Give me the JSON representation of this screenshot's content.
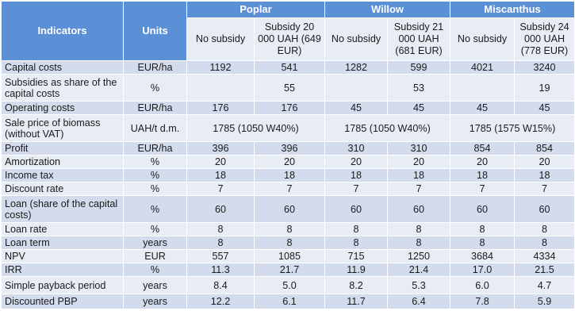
{
  "header": {
    "indicators_label": "Indicators",
    "units_label": "Units",
    "crops": [
      "Poplar",
      "Willow",
      "Miscanthus"
    ],
    "scenarios": [
      "No subsidy",
      "Subsidy 20 000 UAH (649 EUR)",
      "No subsidy",
      "Subsidy 21 000 UAH (681 EUR)",
      "No subsidy",
      "Subsidy 24 000 UAH (778 EUR)"
    ]
  },
  "rows": [
    {
      "indicator": "Capital costs",
      "unit": "EUR/ha",
      "values": [
        "1192",
        "541",
        "1282",
        "599",
        "4021",
        "3240"
      ]
    },
    {
      "indicator": "Subsidies as share of the capital costs",
      "unit": "%",
      "values": [
        "",
        "55",
        "",
        "53",
        "",
        "19"
      ]
    },
    {
      "indicator": "Operating costs",
      "unit": "EUR/ha",
      "values": [
        "176",
        "176",
        "45",
        "45",
        "45",
        "45"
      ]
    },
    {
      "indicator": "Sale price of biomass (without VAT)",
      "unit": "UAH/t d.m.",
      "merged": [
        "1785 (1050 W40%)",
        "1785 (1050 W40%)",
        "1785 (1575 W15%)"
      ]
    },
    {
      "indicator": "Profit",
      "unit": "EUR/ha",
      "values": [
        "396",
        "396",
        "310",
        "310",
        "854",
        "854"
      ]
    },
    {
      "indicator": "Amortization",
      "unit": "%",
      "values": [
        "20",
        "20",
        "20",
        "20",
        "20",
        "20"
      ]
    },
    {
      "indicator": "Income tax",
      "unit": "%",
      "values": [
        "18",
        "18",
        "18",
        "18",
        "18",
        "18"
      ]
    },
    {
      "indicator": "Discount rate",
      "unit": "%",
      "values": [
        "7",
        "7",
        "7",
        "7",
        "7",
        "7"
      ]
    },
    {
      "indicator": "Loan (share of the capital costs)",
      "unit": "%",
      "values": [
        "60",
        "60",
        "60",
        "60",
        "60",
        "60"
      ]
    },
    {
      "indicator": "Loan rate",
      "unit": "%",
      "values": [
        "8",
        "8",
        "8",
        "8",
        "8",
        "8"
      ]
    },
    {
      "indicator": "Loan term",
      "unit": "years",
      "values": [
        "8",
        "8",
        "8",
        "8",
        "8",
        "8"
      ]
    },
    {
      "indicator": "NPV",
      "unit": "EUR",
      "values": [
        "557",
        "1085",
        "715",
        "1250",
        "3684",
        "4334"
      ]
    },
    {
      "indicator": "IRR",
      "unit": "%",
      "values": [
        "11.3",
        "21.7",
        "11.9",
        "21.4",
        "17.0",
        "21.5"
      ]
    },
    {
      "indicator": "Simple payback period",
      "unit": "years",
      "values": [
        "8.4",
        "5.0",
        "8.2",
        "5.3",
        "6.0",
        "4.7"
      ]
    },
    {
      "indicator": "Discounted PBP",
      "unit": "years",
      "values": [
        "12.2",
        "6.1",
        "11.7",
        "6.4",
        "7.8",
        "5.9"
      ]
    }
  ]
}
